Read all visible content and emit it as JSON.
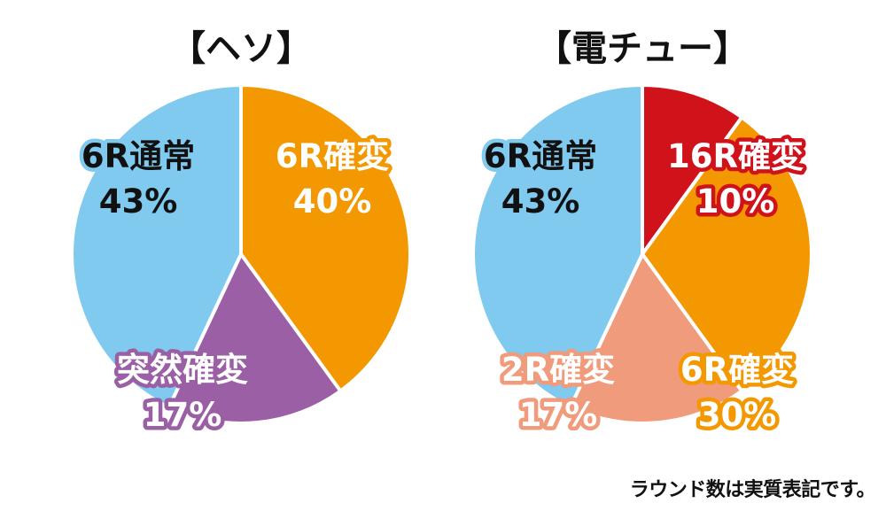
{
  "chart_data": [
    {
      "type": "pie",
      "title": "【ヘソ】",
      "slices": [
        {
          "label": "6R確変",
          "value": 40,
          "value_text": "40%",
          "color": "#f39800"
        },
        {
          "label": "突然確変",
          "value": 17,
          "value_text": "17%",
          "color": "#9b5fa5"
        },
        {
          "label": "6R通常",
          "value": 43,
          "value_text": "43%",
          "color": "#80c9ef"
        }
      ]
    },
    {
      "type": "pie",
      "title": "【電チュー】",
      "slices": [
        {
          "label": "16R確変",
          "value": 10,
          "value_text": "10%",
          "color": "#d0121b"
        },
        {
          "label": "6R確変",
          "value": 30,
          "value_text": "30%",
          "color": "#f39800"
        },
        {
          "label": "2R確変",
          "value": 17,
          "value_text": "17%",
          "color": "#f09b7b"
        },
        {
          "label": "6R通常",
          "value": 43,
          "value_text": "43%",
          "color": "#80c9ef"
        }
      ]
    }
  ],
  "footnote": "ラウンド数は実質表記です。"
}
